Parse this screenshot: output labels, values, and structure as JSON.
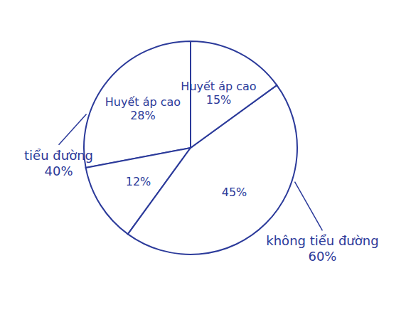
{
  "chart_data": {
    "type": "pie",
    "categories": [
      "Huyết áp cao",
      null,
      null,
      "Huyết áp cao"
    ],
    "values": [
      28,
      12,
      45,
      15
    ],
    "value_labels": [
      "28%",
      "12%",
      "45%",
      "15%"
    ],
    "groups": [
      {
        "label": "tiểu đường",
        "value": 40,
        "value_label": "40%"
      },
      {
        "label": "không tiểu đường",
        "value": 60,
        "value_label": "60%"
      }
    ],
    "color": "#2b3a9a",
    "data_labels": true
  }
}
